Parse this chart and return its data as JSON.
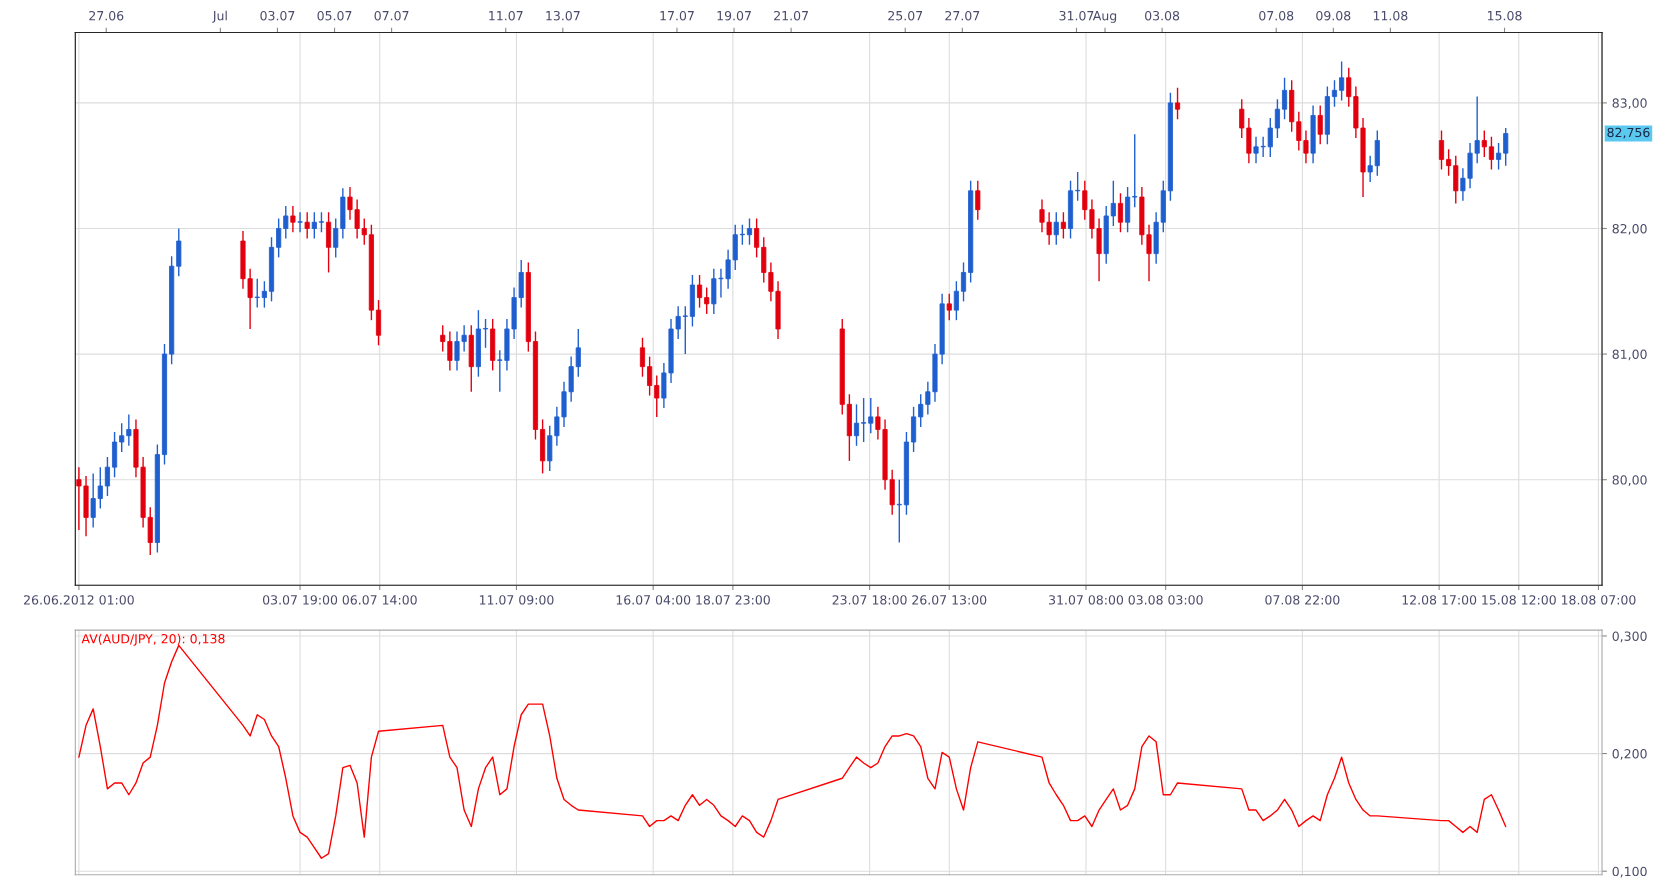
{
  "chart_data": [
    {
      "type": "candlestick",
      "x": [
        "2012-06-26T01:00",
        "2012-06-26T07:00",
        "2012-06-26T13:00",
        "2012-06-26T19:00",
        "2012-06-27T01:00",
        "2012-06-27T07:00",
        "2012-06-27T13:00",
        "2012-06-27T19:00",
        "2012-06-28T01:00",
        "2012-06-28T07:00",
        "2012-06-28T13:00",
        "2012-06-28T19:00",
        "2012-06-29T01:00",
        "2012-06-29T07:00",
        "2012-06-29T13:00",
        "2012-07-01T19:00",
        "2012-07-02T01:00",
        "2012-07-02T07:00",
        "2012-07-02T13:00",
        "2012-07-02T19:00",
        "2012-07-03T01:00",
        "2012-07-03T07:00",
        "2012-07-03T13:00",
        "2012-07-03T19:00",
        "2012-07-04T01:00",
        "2012-07-04T07:00",
        "2012-07-04T13:00",
        "2012-07-04T19:00",
        "2012-07-05T01:00",
        "2012-07-05T07:00",
        "2012-07-05T13:00",
        "2012-07-05T19:00",
        "2012-07-06T01:00",
        "2012-07-06T07:00",
        "2012-07-06T13:00",
        "2012-07-08T19:00",
        "2012-07-09T01:00",
        "2012-07-09T07:00",
        "2012-07-09T13:00",
        "2012-07-09T19:00",
        "2012-07-10T01:00",
        "2012-07-10T07:00",
        "2012-07-10T13:00",
        "2012-07-10T19:00",
        "2012-07-11T01:00",
        "2012-07-11T07:00",
        "2012-07-11T13:00",
        "2012-07-11T19:00",
        "2012-07-12T01:00",
        "2012-07-12T07:00",
        "2012-07-12T13:00",
        "2012-07-12T19:00",
        "2012-07-13T01:00",
        "2012-07-13T07:00",
        "2012-07-13T13:00",
        "2012-07-15T19:00",
        "2012-07-16T01:00",
        "2012-07-16T07:00",
        "2012-07-16T13:00",
        "2012-07-16T19:00",
        "2012-07-17T01:00",
        "2012-07-17T07:00",
        "2012-07-17T13:00",
        "2012-07-17T19:00",
        "2012-07-18T01:00",
        "2012-07-18T07:00",
        "2012-07-18T13:00",
        "2012-07-18T19:00",
        "2012-07-19T01:00",
        "2012-07-19T07:00",
        "2012-07-19T13:00",
        "2012-07-19T19:00",
        "2012-07-20T01:00",
        "2012-07-20T07:00",
        "2012-07-20T13:00",
        "2012-07-22T19:00",
        "2012-07-23T01:00",
        "2012-07-23T07:00",
        "2012-07-23T13:00",
        "2012-07-23T19:00",
        "2012-07-24T01:00",
        "2012-07-24T07:00",
        "2012-07-24T13:00",
        "2012-07-24T19:00",
        "2012-07-25T01:00",
        "2012-07-25T07:00",
        "2012-07-25T13:00",
        "2012-07-25T19:00",
        "2012-07-26T01:00",
        "2012-07-26T07:00",
        "2012-07-26T13:00",
        "2012-07-26T19:00",
        "2012-07-27T01:00",
        "2012-07-27T07:00",
        "2012-07-27T13:00",
        "2012-07-29T19:00",
        "2012-07-30T01:00",
        "2012-07-30T07:00",
        "2012-07-30T13:00",
        "2012-07-30T19:00",
        "2012-07-31T01:00",
        "2012-07-31T07:00",
        "2012-07-31T13:00",
        "2012-07-31T19:00",
        "2012-08-01T01:00",
        "2012-08-01T07:00",
        "2012-08-01T13:00",
        "2012-08-01T19:00",
        "2012-08-02T01:00",
        "2012-08-02T07:00",
        "2012-08-02T13:00",
        "2012-08-02T19:00",
        "2012-08-03T01:00",
        "2012-08-03T07:00",
        "2012-08-03T13:00",
        "2012-08-05T19:00",
        "2012-08-06T01:00",
        "2012-08-06T07:00",
        "2012-08-06T13:00",
        "2012-08-06T19:00",
        "2012-08-07T01:00",
        "2012-08-07T07:00",
        "2012-08-07T13:00",
        "2012-08-07T19:00",
        "2012-08-08T01:00",
        "2012-08-08T07:00",
        "2012-08-08T13:00",
        "2012-08-08T19:00",
        "2012-08-09T01:00",
        "2012-08-09T07:00",
        "2012-08-09T13:00",
        "2012-08-09T19:00",
        "2012-08-10T01:00",
        "2012-08-10T07:00",
        "2012-08-10T13:00",
        "2012-08-12T19:00",
        "2012-08-13T01:00",
        "2012-08-13T07:00",
        "2012-08-13T13:00",
        "2012-08-13T19:00",
        "2012-08-14T01:00",
        "2012-08-14T07:00",
        "2012-08-14T13:00",
        "2012-08-14T19:00",
        "2012-08-15T01:00"
      ],
      "ohlc": [
        [
          80.0,
          80.1,
          79.6,
          79.95
        ],
        [
          79.95,
          80.03,
          79.55,
          79.7
        ],
        [
          79.7,
          80.05,
          79.62,
          79.85
        ],
        [
          79.85,
          80.1,
          79.77,
          79.95
        ],
        [
          79.95,
          80.18,
          79.87,
          80.1
        ],
        [
          80.1,
          80.38,
          80.02,
          80.3
        ],
        [
          80.3,
          80.45,
          80.22,
          80.35
        ],
        [
          80.35,
          80.52,
          80.27,
          80.4
        ],
        [
          80.4,
          80.48,
          80.02,
          80.1
        ],
        [
          80.1,
          80.18,
          79.62,
          79.7
        ],
        [
          79.7,
          79.78,
          79.4,
          79.5
        ],
        [
          79.5,
          80.28,
          79.42,
          80.2
        ],
        [
          80.2,
          81.08,
          80.12,
          81.0
        ],
        [
          81.0,
          81.78,
          80.92,
          81.7
        ],
        [
          81.7,
          82.0,
          81.62,
          81.9
        ],
        [
          81.9,
          81.98,
          81.52,
          81.6
        ],
        [
          81.6,
          81.68,
          81.2,
          81.45
        ],
        [
          81.45,
          81.6,
          81.37,
          81.45
        ],
        [
          81.45,
          81.58,
          81.37,
          81.5
        ],
        [
          81.5,
          81.93,
          81.42,
          81.85
        ],
        [
          81.85,
          82.08,
          81.77,
          82.0
        ],
        [
          82.0,
          82.18,
          81.92,
          82.1
        ],
        [
          82.1,
          82.18,
          81.97,
          82.05
        ],
        [
          82.05,
          82.13,
          81.97,
          82.05
        ],
        [
          82.05,
          82.13,
          81.92,
          82.0
        ],
        [
          82.0,
          82.13,
          81.92,
          82.05
        ],
        [
          82.05,
          82.13,
          81.97,
          82.05
        ],
        [
          82.05,
          82.13,
          81.65,
          81.85
        ],
        [
          81.85,
          82.08,
          81.77,
          82.0
        ],
        [
          82.0,
          82.32,
          81.92,
          82.25
        ],
        [
          82.25,
          82.33,
          82.07,
          82.15
        ],
        [
          82.15,
          82.23,
          81.92,
          82.0
        ],
        [
          82.0,
          82.08,
          81.87,
          81.95
        ],
        [
          81.95,
          82.03,
          81.27,
          81.35
        ],
        [
          81.35,
          81.43,
          81.07,
          81.15
        ],
        [
          81.15,
          81.23,
          81.02,
          81.1
        ],
        [
          81.1,
          81.18,
          80.87,
          80.95
        ],
        [
          80.95,
          81.18,
          80.87,
          81.1
        ],
        [
          81.1,
          81.23,
          81.02,
          81.15
        ],
        [
          81.15,
          81.23,
          80.7,
          80.9
        ],
        [
          80.9,
          81.35,
          80.82,
          81.2
        ],
        [
          81.2,
          81.28,
          81.05,
          81.2
        ],
        [
          81.2,
          81.28,
          80.87,
          80.95
        ],
        [
          80.95,
          81.03,
          80.7,
          80.95
        ],
        [
          80.95,
          81.28,
          80.87,
          81.2
        ],
        [
          81.2,
          81.53,
          81.12,
          81.45
        ],
        [
          81.45,
          81.75,
          81.37,
          81.65
        ],
        [
          81.65,
          81.73,
          81.02,
          81.1
        ],
        [
          81.1,
          81.18,
          80.32,
          80.4
        ],
        [
          80.4,
          80.48,
          80.05,
          80.15
        ],
        [
          80.15,
          80.43,
          80.07,
          80.35
        ],
        [
          80.35,
          80.58,
          80.27,
          80.5
        ],
        [
          80.5,
          80.78,
          80.42,
          80.7
        ],
        [
          80.7,
          80.98,
          80.62,
          80.9
        ],
        [
          80.9,
          81.2,
          80.82,
          81.05
        ],
        [
          81.05,
          81.13,
          80.82,
          80.9
        ],
        [
          80.9,
          80.98,
          80.67,
          80.75
        ],
        [
          80.75,
          80.83,
          80.5,
          80.65
        ],
        [
          80.65,
          80.93,
          80.57,
          80.85
        ],
        [
          80.85,
          81.28,
          80.77,
          81.2
        ],
        [
          81.2,
          81.38,
          81.12,
          81.3
        ],
        [
          81.3,
          81.38,
          81.0,
          81.3
        ],
        [
          81.3,
          81.63,
          81.22,
          81.55
        ],
        [
          81.55,
          81.63,
          81.37,
          81.45
        ],
        [
          81.45,
          81.53,
          81.32,
          81.4
        ],
        [
          81.4,
          81.68,
          81.32,
          81.6
        ],
        [
          81.6,
          81.68,
          81.45,
          81.6
        ],
        [
          81.6,
          81.83,
          81.52,
          81.75
        ],
        [
          81.75,
          82.03,
          81.67,
          81.95
        ],
        [
          81.95,
          82.03,
          81.87,
          81.95
        ],
        [
          81.95,
          82.08,
          81.87,
          82.0
        ],
        [
          82.0,
          82.08,
          81.77,
          81.85
        ],
        [
          81.85,
          81.93,
          81.57,
          81.65
        ],
        [
          81.65,
          81.73,
          81.42,
          81.5
        ],
        [
          81.5,
          81.58,
          81.12,
          81.2
        ],
        [
          81.2,
          81.28,
          80.52,
          80.6
        ],
        [
          80.6,
          80.68,
          80.15,
          80.35
        ],
        [
          80.35,
          80.6,
          80.27,
          80.45
        ],
        [
          80.45,
          80.65,
          80.3,
          80.45
        ],
        [
          80.45,
          80.65,
          80.37,
          80.5
        ],
        [
          80.5,
          80.58,
          80.32,
          80.4
        ],
        [
          80.4,
          80.48,
          79.92,
          80.0
        ],
        [
          80.0,
          80.08,
          79.72,
          79.8
        ],
        [
          79.8,
          80.0,
          79.5,
          79.8
        ],
        [
          79.8,
          80.38,
          79.72,
          80.3
        ],
        [
          80.3,
          80.58,
          80.22,
          80.5
        ],
        [
          80.5,
          80.68,
          80.42,
          80.6
        ],
        [
          80.6,
          80.78,
          80.52,
          80.7
        ],
        [
          80.7,
          81.08,
          80.62,
          81.0
        ],
        [
          81.0,
          81.48,
          80.92,
          81.4
        ],
        [
          81.4,
          81.48,
          81.27,
          81.35
        ],
        [
          81.35,
          81.58,
          81.27,
          81.5
        ],
        [
          81.5,
          81.73,
          81.42,
          81.65
        ],
        [
          81.65,
          82.38,
          81.57,
          82.3
        ],
        [
          82.3,
          82.38,
          82.07,
          82.15
        ],
        [
          82.15,
          82.23,
          81.97,
          82.05
        ],
        [
          82.05,
          82.13,
          81.87,
          81.95
        ],
        [
          81.95,
          82.13,
          81.87,
          82.05
        ],
        [
          82.05,
          82.13,
          81.92,
          82.0
        ],
        [
          82.0,
          82.38,
          81.92,
          82.3
        ],
        [
          82.3,
          82.45,
          82.22,
          82.3
        ],
        [
          82.3,
          82.38,
          82.07,
          82.15
        ],
        [
          82.15,
          82.23,
          81.92,
          82.0
        ],
        [
          82.0,
          82.08,
          81.58,
          81.8
        ],
        [
          81.8,
          82.18,
          81.72,
          82.1
        ],
        [
          82.1,
          82.38,
          82.02,
          82.2
        ],
        [
          82.2,
          82.28,
          81.97,
          82.05
        ],
        [
          82.05,
          82.33,
          81.97,
          82.25
        ],
        [
          82.25,
          82.75,
          82.17,
          82.25
        ],
        [
          82.25,
          82.33,
          81.87,
          81.95
        ],
        [
          81.95,
          82.03,
          81.58,
          81.8
        ],
        [
          81.8,
          82.13,
          81.72,
          82.05
        ],
        [
          82.05,
          82.38,
          81.97,
          82.3
        ],
        [
          82.3,
          83.08,
          82.22,
          83.0
        ],
        [
          83.0,
          83.12,
          82.87,
          82.95
        ],
        [
          82.95,
          83.03,
          82.72,
          82.8
        ],
        [
          82.8,
          82.88,
          82.52,
          82.6
        ],
        [
          82.6,
          82.73,
          82.52,
          82.65
        ],
        [
          82.65,
          82.73,
          82.57,
          82.65
        ],
        [
          82.65,
          82.88,
          82.57,
          82.8
        ],
        [
          82.8,
          83.03,
          82.72,
          82.95
        ],
        [
          82.95,
          83.2,
          82.87,
          83.1
        ],
        [
          83.1,
          83.18,
          82.77,
          82.85
        ],
        [
          82.85,
          82.93,
          82.62,
          82.7
        ],
        [
          82.7,
          82.78,
          82.52,
          82.6
        ],
        [
          82.6,
          82.98,
          82.52,
          82.9
        ],
        [
          82.9,
          82.98,
          82.67,
          82.75
        ],
        [
          82.75,
          83.13,
          82.67,
          83.05
        ],
        [
          83.05,
          83.18,
          82.97,
          83.1
        ],
        [
          83.1,
          83.33,
          83.02,
          83.2
        ],
        [
          83.2,
          83.28,
          82.97,
          83.05
        ],
        [
          83.05,
          83.13,
          82.72,
          82.8
        ],
        [
          82.8,
          82.88,
          82.25,
          82.45
        ],
        [
          82.45,
          82.58,
          82.37,
          82.5
        ],
        [
          82.5,
          82.78,
          82.42,
          82.7
        ],
        [
          82.7,
          82.78,
          82.47,
          82.55
        ],
        [
          82.55,
          82.63,
          82.42,
          82.5
        ],
        [
          82.5,
          82.58,
          82.2,
          82.3
        ],
        [
          82.3,
          82.48,
          82.22,
          82.4
        ],
        [
          82.4,
          82.68,
          82.32,
          82.6
        ],
        [
          82.6,
          83.05,
          82.52,
          82.7
        ],
        [
          82.7,
          82.78,
          82.57,
          82.65
        ],
        [
          82.65,
          82.73,
          82.47,
          82.55
        ],
        [
          82.55,
          82.68,
          82.47,
          82.6
        ],
        [
          82.6,
          82.8,
          82.5,
          82.756
        ]
      ],
      "colors": [
        "#e3000f",
        "#e3000f",
        "#1f5fcf",
        "#1f5fcf",
        "#1f5fcf",
        "#1f5fcf",
        "#1f5fcf",
        "#1f5fcf",
        "#e3000f",
        "#e3000f",
        "#e3000f",
        "#1f5fcf",
        "#1f5fcf",
        "#1f5fcf",
        "#1f5fcf",
        "#e3000f",
        "#e3000f",
        "#1f5fcf",
        "#1f5fcf",
        "#1f5fcf",
        "#1f5fcf",
        "#1f5fcf",
        "#e3000f",
        "#1f5fcf",
        "#e3000f",
        "#1f5fcf",
        "#1f5fcf",
        "#e3000f",
        "#1f5fcf",
        "#1f5fcf",
        "#e3000f",
        "#e3000f",
        "#e3000f",
        "#e3000f",
        "#e3000f",
        "#e3000f",
        "#e3000f",
        "#1f5fcf",
        "#1f5fcf",
        "#e3000f",
        "#1f5fcf",
        "#1f5fcf",
        "#e3000f",
        "#1f5fcf",
        "#1f5fcf",
        "#1f5fcf",
        "#1f5fcf",
        "#e3000f",
        "#e3000f",
        "#e3000f",
        "#1f5fcf",
        "#1f5fcf",
        "#1f5fcf",
        "#1f5fcf",
        "#1f5fcf",
        "#e3000f",
        "#e3000f",
        "#e3000f",
        "#1f5fcf",
        "#1f5fcf",
        "#1f5fcf",
        "#1f5fcf",
        "#1f5fcf",
        "#e3000f",
        "#e3000f",
        "#1f5fcf",
        "#1f5fcf",
        "#1f5fcf",
        "#1f5fcf",
        "#1f5fcf",
        "#1f5fcf",
        "#e3000f",
        "#e3000f",
        "#e3000f",
        "#e3000f",
        "#e3000f",
        "#e3000f",
        "#1f5fcf",
        "#1f5fcf",
        "#1f5fcf",
        "#e3000f",
        "#e3000f",
        "#e3000f",
        "#1f5fcf",
        "#1f5fcf",
        "#1f5fcf",
        "#1f5fcf",
        "#1f5fcf",
        "#1f5fcf",
        "#1f5fcf",
        "#e3000f",
        "#1f5fcf",
        "#1f5fcf",
        "#1f5fcf",
        "#e3000f",
        "#e3000f",
        "#e3000f",
        "#1f5fcf",
        "#e3000f",
        "#1f5fcf",
        "#1f5fcf",
        "#e3000f",
        "#e3000f",
        "#e3000f",
        "#1f5fcf",
        "#1f5fcf",
        "#e3000f",
        "#1f5fcf",
        "#1f5fcf",
        "#e3000f",
        "#e3000f",
        "#1f5fcf",
        "#1f5fcf",
        "#1f5fcf",
        "#e3000f",
        "#e3000f",
        "#e3000f",
        "#1f5fcf",
        "#1f5fcf",
        "#1f5fcf",
        "#1f5fcf",
        "#1f5fcf",
        "#e3000f",
        "#e3000f",
        "#e3000f",
        "#1f5fcf",
        "#e3000f",
        "#1f5fcf",
        "#1f5fcf",
        "#1f5fcf",
        "#e3000f",
        "#e3000f",
        "#e3000f",
        "#1f5fcf",
        "#1f5fcf",
        "#e3000f",
        "#e3000f",
        "#e3000f",
        "#1f5fcf",
        "#1f5fcf",
        "#1f5fcf",
        "#e3000f",
        "#e3000f",
        "#1f5fcf",
        "#1f5fcf"
      ],
      "xlim": [
        "2012-06-25T22:00",
        "2012-08-18T10:00"
      ],
      "xticks": [
        {
          "value": "2012-06-26T01:00",
          "label": "26.06.2012 01:00"
        },
        {
          "value": "2012-07-03T19:00",
          "label": "03.07 19:00"
        },
        {
          "value": "2012-07-06T14:00",
          "label": "06.07 14:00"
        },
        {
          "value": "2012-07-11T09:00",
          "label": "11.07 09:00"
        },
        {
          "value": "2012-07-16T04:00",
          "label": "16.07 04:00"
        },
        {
          "value": "2012-07-18T23:00",
          "label": "18.07 23:00"
        },
        {
          "value": "2012-07-23T18:00",
          "label": "23.07 18:00"
        },
        {
          "value": "2012-07-26T13:00",
          "label": "26.07 13:00"
        },
        {
          "value": "2012-07-31T08:00",
          "label": "31.07 08:00"
        },
        {
          "value": "2012-08-03T03:00",
          "label": "03.08 03:00"
        },
        {
          "value": "2012-08-07T22:00",
          "label": "07.08 22:00"
        },
        {
          "value": "2012-08-12T17:00",
          "label": "12.08 17:00"
        },
        {
          "value": "2012-08-15T12:00",
          "label": "15.08 12:00"
        },
        {
          "value": "2012-08-18T07:00",
          "label": "18.08 07:00"
        }
      ],
      "x2lim": [
        "2012-06-25T22:00",
        "2012-08-18T10:00"
      ],
      "x2ticks": [
        {
          "value": "2012-06-27",
          "label": "27.06"
        },
        {
          "value": "2012-07-01",
          "label": "Jul"
        },
        {
          "value": "2012-07-03",
          "label": "03.07"
        },
        {
          "value": "2012-07-05",
          "label": "05.07"
        },
        {
          "value": "2012-07-07",
          "label": "07.07"
        },
        {
          "value": "2012-07-11",
          "label": "11.07"
        },
        {
          "value": "2012-07-13",
          "label": "13.07"
        },
        {
          "value": "2012-07-17",
          "label": "17.07"
        },
        {
          "value": "2012-07-19",
          "label": "19.07"
        },
        {
          "value": "2012-07-21",
          "label": "21.07"
        },
        {
          "value": "2012-07-25",
          "label": "25.07"
        },
        {
          "value": "2012-07-27",
          "label": "27.07"
        },
        {
          "value": "2012-07-31",
          "label": "31.07"
        },
        {
          "value": "2012-08-01",
          "label": "Aug"
        },
        {
          "value": "2012-08-03",
          "label": "03.08"
        },
        {
          "value": "2012-08-07",
          "label": "07.08"
        },
        {
          "value": "2012-08-09",
          "label": "09.08"
        },
        {
          "value": "2012-08-11",
          "label": "11.08"
        },
        {
          "value": "2012-08-15",
          "label": "15.08"
        }
      ],
      "ylim": [
        79.16,
        83.56
      ],
      "yticks": [
        {
          "value": 80,
          "label": "80,00"
        },
        {
          "value": 81,
          "label": "81,00"
        },
        {
          "value": 82,
          "label": "82,00"
        },
        {
          "value": 83,
          "label": "83,00"
        }
      ],
      "grid": true,
      "annotations": [
        "82,756"
      ]
    },
    {
      "type": "line",
      "title": "AV(AUD/JPY, 20): 0,138",
      "x": [
        "2012-06-26T01:00",
        "2012-06-26T07:00",
        "2012-06-26T13:00",
        "2012-06-26T19:00",
        "2012-06-27T01:00",
        "2012-06-27T07:00",
        "2012-06-27T13:00",
        "2012-06-27T19:00",
        "2012-06-28T01:00",
        "2012-06-28T07:00",
        "2012-06-28T13:00",
        "2012-06-28T19:00",
        "2012-06-29T01:00",
        "2012-06-29T07:00",
        "2012-06-29T13:00",
        "2012-07-01T19:00",
        "2012-07-02T01:00",
        "2012-07-02T07:00",
        "2012-07-02T13:00",
        "2012-07-02T19:00",
        "2012-07-03T01:00",
        "2012-07-03T07:00",
        "2012-07-03T13:00",
        "2012-07-03T19:00",
        "2012-07-04T01:00",
        "2012-07-04T07:00",
        "2012-07-04T13:00",
        "2012-07-04T19:00",
        "2012-07-05T01:00",
        "2012-07-05T07:00",
        "2012-07-05T13:00",
        "2012-07-05T19:00",
        "2012-07-06T01:00",
        "2012-07-06T07:00",
        "2012-07-06T13:00",
        "2012-07-08T19:00",
        "2012-07-09T01:00",
        "2012-07-09T07:00",
        "2012-07-09T13:00",
        "2012-07-09T19:00",
        "2012-07-10T01:00",
        "2012-07-10T07:00",
        "2012-07-10T13:00",
        "2012-07-10T19:00",
        "2012-07-11T01:00",
        "2012-07-11T07:00",
        "2012-07-11T13:00",
        "2012-07-11T19:00",
        "2012-07-12T01:00",
        "2012-07-12T07:00",
        "2012-07-12T13:00",
        "2012-07-12T19:00",
        "2012-07-13T01:00",
        "2012-07-13T07:00",
        "2012-07-13T13:00",
        "2012-07-15T19:00",
        "2012-07-16T01:00",
        "2012-07-16T07:00",
        "2012-07-16T13:00",
        "2012-07-16T19:00",
        "2012-07-17T01:00",
        "2012-07-17T07:00",
        "2012-07-17T13:00",
        "2012-07-17T19:00",
        "2012-07-18T01:00",
        "2012-07-18T07:00",
        "2012-07-18T13:00",
        "2012-07-18T19:00",
        "2012-07-19T01:00",
        "2012-07-19T07:00",
        "2012-07-19T13:00",
        "2012-07-19T19:00",
        "2012-07-20T01:00",
        "2012-07-20T07:00",
        "2012-07-20T13:00",
        "2012-07-22T19:00",
        "2012-07-23T01:00",
        "2012-07-23T07:00",
        "2012-07-23T13:00",
        "2012-07-23T19:00",
        "2012-07-24T01:00",
        "2012-07-24T07:00",
        "2012-07-24T13:00",
        "2012-07-24T19:00",
        "2012-07-25T01:00",
        "2012-07-25T07:00",
        "2012-07-25T13:00",
        "2012-07-25T19:00",
        "2012-07-26T01:00",
        "2012-07-26T07:00",
        "2012-07-26T13:00",
        "2012-07-26T19:00",
        "2012-07-27T01:00",
        "2012-07-27T07:00",
        "2012-07-27T13:00",
        "2012-07-29T19:00",
        "2012-07-30T01:00",
        "2012-07-30T07:00",
        "2012-07-30T13:00",
        "2012-07-30T19:00",
        "2012-07-31T01:00",
        "2012-07-31T07:00",
        "2012-07-31T13:00",
        "2012-07-31T19:00",
        "2012-08-01T01:00",
        "2012-08-01T07:00",
        "2012-08-01T13:00",
        "2012-08-01T19:00",
        "2012-08-02T01:00",
        "2012-08-02T07:00",
        "2012-08-02T13:00",
        "2012-08-02T19:00",
        "2012-08-03T01:00",
        "2012-08-03T07:00",
        "2012-08-03T13:00",
        "2012-08-05T19:00",
        "2012-08-06T01:00",
        "2012-08-06T07:00",
        "2012-08-06T13:00",
        "2012-08-06T19:00",
        "2012-08-07T01:00",
        "2012-08-07T07:00",
        "2012-08-07T13:00",
        "2012-08-07T19:00",
        "2012-08-08T01:00",
        "2012-08-08T07:00",
        "2012-08-08T13:00",
        "2012-08-08T19:00",
        "2012-08-09T01:00",
        "2012-08-09T07:00",
        "2012-08-09T13:00",
        "2012-08-09T19:00",
        "2012-08-10T01:00",
        "2012-08-10T07:00",
        "2012-08-10T13:00",
        "2012-08-12T19:00",
        "2012-08-13T01:00",
        "2012-08-13T07:00",
        "2012-08-13T13:00",
        "2012-08-13T19:00",
        "2012-08-14T01:00",
        "2012-08-14T07:00",
        "2012-08-14T13:00",
        "2012-08-14T19:00",
        "2012-08-15T01:00"
      ],
      "series": [
        {
          "color": "#ff0000",
          "values": [
            0.197,
            0.224,
            0.238,
            0.206,
            0.17,
            0.175,
            0.175,
            0.165,
            0.175,
            0.192,
            0.197,
            0.224,
            0.26,
            0.278,
            0.292,
            0.224,
            0.215,
            0.233,
            0.229,
            0.215,
            0.206,
            0.179,
            0.147,
            0.133,
            0.129,
            0.12,
            0.111,
            0.115,
            0.147,
            0.188,
            0.19,
            0.175,
            0.129,
            0.197,
            0.219,
            0.224,
            0.197,
            0.188,
            0.152,
            0.138,
            0.17,
            0.188,
            0.197,
            0.165,
            0.17,
            0.206,
            0.233,
            0.242,
            0.242,
            0.242,
            0.215,
            0.179,
            0.161,
            0.156,
            0.152,
            0.147,
            0.138,
            0.143,
            0.143,
            0.147,
            0.143,
            0.156,
            0.165,
            0.156,
            0.161,
            0.156,
            0.147,
            0.143,
            0.138,
            0.147,
            0.143,
            0.133,
            0.129,
            0.143,
            0.161,
            0.179,
            0.188,
            0.197,
            0.192,
            0.188,
            0.192,
            0.206,
            0.215,
            0.215,
            0.217,
            0.215,
            0.206,
            0.179,
            0.17,
            0.201,
            0.197,
            0.17,
            0.152,
            0.188,
            0.21,
            0.197,
            0.175,
            0.165,
            0.156,
            0.143,
            0.143,
            0.147,
            0.138,
            0.152,
            0.161,
            0.17,
            0.152,
            0.156,
            0.17,
            0.206,
            0.215,
            0.21,
            0.165,
            0.165,
            0.175,
            0.17,
            0.152,
            0.152,
            0.143,
            0.147,
            0.152,
            0.161,
            0.152,
            0.138,
            0.143,
            0.147,
            0.143,
            0.165,
            0.179,
            0.197,
            0.175,
            0.161,
            0.152,
            0.147,
            0.147,
            0.143,
            0.143,
            0.138,
            0.133,
            0.138,
            0.133,
            0.161,
            0.165,
            0.152,
            0.138
          ]
        }
      ],
      "xlim": [
        "2012-06-25T22:00",
        "2012-08-18T10:00"
      ],
      "xticks": [
        "2012-06-26T01:00",
        "2012-07-03T19:00",
        "2012-07-06T14:00",
        "2012-07-11T09:00",
        "2012-07-16T04:00",
        "2012-07-18T23:00",
        "2012-07-23T18:00",
        "2012-07-26T13:00",
        "2012-07-31T08:00",
        "2012-08-03T03:00",
        "2012-08-07T22:00",
        "2012-08-12T17:00",
        "2012-08-15T12:00",
        "2012-08-18T07:00"
      ],
      "ylim": [
        0.097,
        0.305
      ],
      "yticks": [
        {
          "value": 0.1,
          "label": "0,100"
        },
        {
          "value": 0.2,
          "label": "0,200"
        },
        {
          "value": 0.3,
          "label": "0,300"
        }
      ],
      "grid": true,
      "tick_labels": "y"
    }
  ]
}
